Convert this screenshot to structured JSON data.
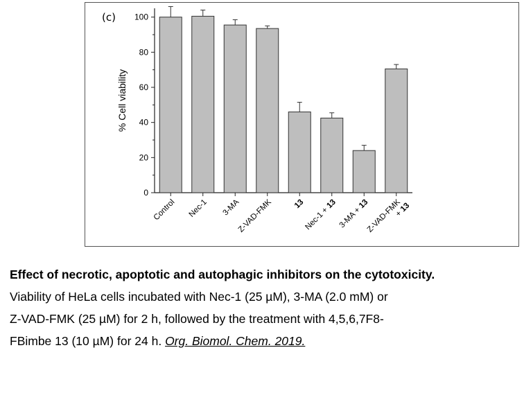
{
  "panel_label": "(c)",
  "caption": {
    "title": "Effect of necrotic, apoptotic and autophagic inhibitors on the cytotoxicity.",
    "line1": "Viability of HeLa cells incubated with Nec-1 (25 µM), 3-MA (2.0 mM) or",
    "line2": "Z-VAD-FMK (25 µM) for 2 h, followed by the treatment with 4,5,6,7F8-",
    "line3_text": "FBimbe 13 (10 µM) for 24 h. ",
    "citation": "Org. Biomol. Chem. 2019."
  },
  "colors": {
    "bar_fill": "#bebebe",
    "bar_stroke": "#333333",
    "axis": "#222222"
  },
  "chart_data": {
    "type": "bar",
    "title": "",
    "xlabel": "",
    "ylabel": "% Cell viability",
    "ylim": [
      0,
      105
    ],
    "yticks": [
      0,
      20,
      40,
      60,
      80,
      100
    ],
    "categories": [
      "Control",
      "Nec-1",
      "3-MA",
      "Z-VAD-FMK",
      "13",
      "Nec-1 + 13",
      "3-MA + 13",
      "Z-VAD-FMK\n+ 13"
    ],
    "values": [
      100,
      100.5,
      95.5,
      93.5,
      46,
      42.5,
      24,
      70.5
    ],
    "error": [
      6,
      3.5,
      3,
      1.5,
      5.5,
      3,
      3,
      2.5
    ],
    "grid": false,
    "legend": "none"
  }
}
